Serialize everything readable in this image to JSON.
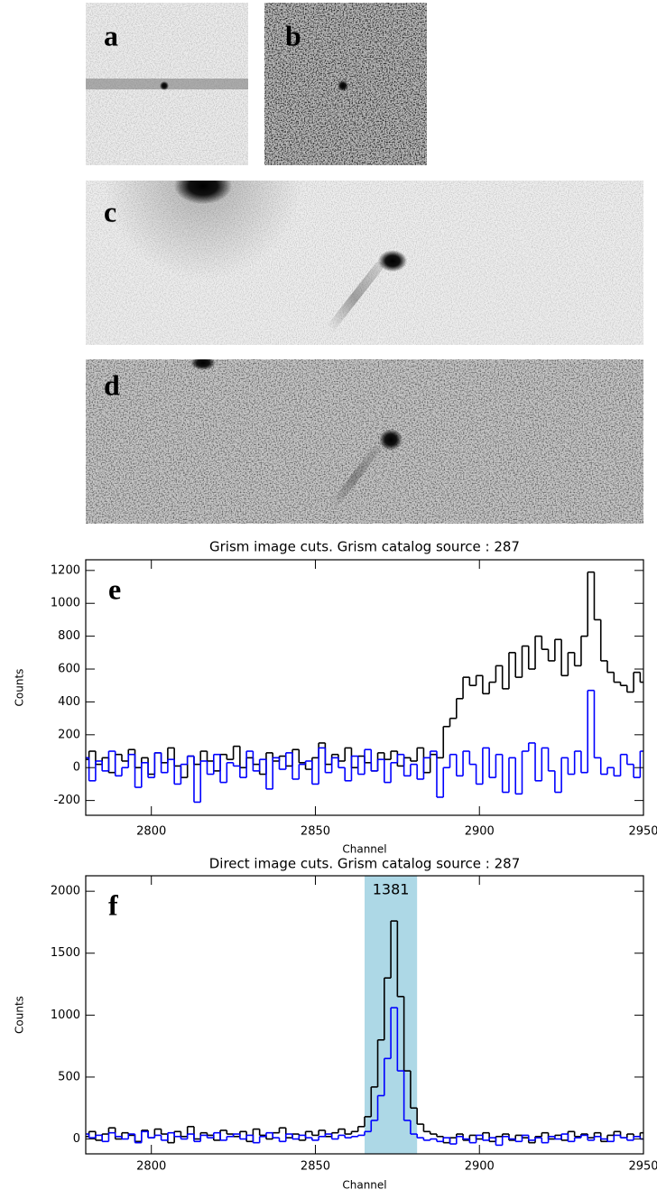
{
  "images": [
    {
      "label": "a"
    },
    {
      "label": "b"
    },
    {
      "label": "c"
    },
    {
      "label": "d"
    }
  ],
  "chart_data": [
    {
      "type": "step",
      "panel_label": "e",
      "title": "Grism image cuts.  Grism catalog source : 287",
      "xlabel": "Channel",
      "ylabel": "Counts",
      "xlim": [
        2780,
        2950
      ],
      "ylim": [
        -290,
        1265
      ],
      "xticks": [
        2800,
        2850,
        2900,
        2950
      ],
      "yticks": [
        -200,
        0,
        200,
        400,
        600,
        800,
        1000,
        1200
      ],
      "x": [
        2780,
        2782,
        2784,
        2786,
        2788,
        2790,
        2792,
        2794,
        2796,
        2798,
        2800,
        2802,
        2804,
        2806,
        2808,
        2810,
        2812,
        2814,
        2816,
        2818,
        2820,
        2822,
        2824,
        2826,
        2828,
        2830,
        2832,
        2834,
        2836,
        2838,
        2840,
        2842,
        2844,
        2846,
        2848,
        2850,
        2852,
        2854,
        2856,
        2858,
        2860,
        2862,
        2864,
        2866,
        2868,
        2870,
        2872,
        2874,
        2876,
        2878,
        2880,
        2882,
        2884,
        2886,
        2888,
        2890,
        2892,
        2894,
        2896,
        2898,
        2900,
        2902,
        2904,
        2906,
        2908,
        2910,
        2912,
        2914,
        2916,
        2918,
        2920,
        2922,
        2924,
        2926,
        2928,
        2930,
        2932,
        2934,
        2936,
        2938,
        2940,
        2942,
        2944,
        2946,
        2948,
        2950
      ],
      "series": [
        {
          "color": "#000000",
          "values": [
            50,
            100,
            20,
            60,
            -30,
            80,
            40,
            110,
            0,
            60,
            -40,
            90,
            30,
            120,
            10,
            -60,
            70,
            20,
            100,
            40,
            -20,
            80,
            50,
            130,
            0,
            60,
            20,
            -40,
            90,
            40,
            70,
            10,
            110,
            30,
            -10,
            60,
            150,
            20,
            80,
            40,
            120,
            0,
            70,
            30,
            -20,
            90,
            50,
            100,
            10,
            60,
            40,
            120,
            -30,
            80,
            60,
            250,
            300,
            420,
            550,
            500,
            560,
            450,
            520,
            620,
            480,
            700,
            550,
            740,
            600,
            800,
            720,
            650,
            780,
            560,
            700,
            620,
            800,
            1190,
            900,
            650,
            580,
            520,
            500,
            460,
            580,
            520
          ]
        },
        {
          "color": "#0000ff",
          "values": [
            60,
            -80,
            40,
            -20,
            100,
            -50,
            0,
            80,
            -120,
            30,
            -60,
            90,
            -30,
            50,
            -100,
            20,
            70,
            -210,
            40,
            -40,
            80,
            -90,
            30,
            10,
            -60,
            100,
            -20,
            50,
            -130,
            60,
            -10,
            90,
            -70,
            20,
            40,
            -100,
            120,
            -30,
            60,
            0,
            -80,
            70,
            -40,
            110,
            -20,
            50,
            -90,
            30,
            80,
            -50,
            20,
            -70,
            60,
            100,
            -180,
            0,
            80,
            -50,
            100,
            20,
            -100,
            120,
            -60,
            80,
            -150,
            60,
            -160,
            100,
            150,
            -80,
            120,
            -20,
            -150,
            60,
            -40,
            100,
            -30,
            470,
            60,
            -40,
            0,
            -50,
            80,
            20,
            -60,
            100
          ]
        }
      ]
    },
    {
      "type": "step",
      "panel_label": "f",
      "title": "Direct image cuts.  Grism catalog source : 287",
      "xlabel": "Channel",
      "ylabel": "Counts",
      "xlim": [
        2780,
        2950
      ],
      "ylim": [
        -120,
        2125
      ],
      "xticks": [
        2800,
        2850,
        2900,
        2950
      ],
      "yticks": [
        0,
        500,
        1000,
        1500,
        2000
      ],
      "highlight": {
        "xlim": [
          2865,
          2881
        ],
        "label": "1381",
        "color": "#add8e6"
      },
      "x": [
        2780,
        2782,
        2784,
        2786,
        2788,
        2790,
        2792,
        2794,
        2796,
        2798,
        2800,
        2802,
        2804,
        2806,
        2808,
        2810,
        2812,
        2814,
        2816,
        2818,
        2820,
        2822,
        2824,
        2826,
        2828,
        2830,
        2832,
        2834,
        2836,
        2838,
        2840,
        2842,
        2844,
        2846,
        2848,
        2850,
        2852,
        2854,
        2856,
        2858,
        2860,
        2862,
        2864,
        2866,
        2868,
        2870,
        2872,
        2874,
        2876,
        2878,
        2880,
        2882,
        2884,
        2886,
        2888,
        2890,
        2892,
        2894,
        2896,
        2898,
        2900,
        2902,
        2904,
        2906,
        2908,
        2910,
        2912,
        2914,
        2916,
        2918,
        2920,
        2922,
        2924,
        2926,
        2928,
        2930,
        2932,
        2934,
        2936,
        2938,
        2940,
        2942,
        2944,
        2946,
        2948,
        2950
      ],
      "series": [
        {
          "color": "#000000",
          "values": [
            20,
            60,
            -10,
            40,
            90,
            0,
            50,
            30,
            -20,
            70,
            10,
            80,
            40,
            -30,
            60,
            20,
            100,
            0,
            50,
            30,
            -10,
            70,
            40,
            20,
            60,
            -20,
            80,
            30,
            0,
            50,
            90,
            10,
            40,
            -10,
            60,
            30,
            70,
            20,
            50,
            80,
            40,
            60,
            100,
            180,
            420,
            800,
            1300,
            1760,
            1150,
            550,
            250,
            120,
            60,
            40,
            20,
            -30,
            10,
            40,
            -10,
            30,
            0,
            50,
            -20,
            20,
            40,
            -10,
            30,
            10,
            -30,
            20,
            50,
            0,
            30,
            -10,
            60,
            20,
            40,
            10,
            50,
            -20,
            30,
            60,
            10,
            40,
            20,
            50
          ]
        },
        {
          "color": "#0000ff",
          "values": [
            40,
            10,
            30,
            -20,
            50,
            20,
            0,
            40,
            -30,
            60,
            10,
            30,
            -10,
            50,
            20,
            0,
            40,
            -20,
            30,
            10,
            50,
            -10,
            20,
            40,
            0,
            30,
            -30,
            20,
            50,
            10,
            -20,
            40,
            0,
            30,
            10,
            -10,
            20,
            40,
            0,
            30,
            10,
            20,
            30,
            60,
            150,
            350,
            650,
            1060,
            550,
            150,
            40,
            10,
            -10,
            0,
            -20,
            10,
            -40,
            20,
            0,
            -30,
            30,
            -10,
            10,
            -50,
            20,
            0,
            -20,
            30,
            -10,
            10,
            -30,
            20,
            0,
            40,
            -20,
            10,
            30,
            -10,
            20,
            0,
            -20,
            30,
            10,
            -10,
            20,
            0
          ]
        }
      ]
    }
  ]
}
